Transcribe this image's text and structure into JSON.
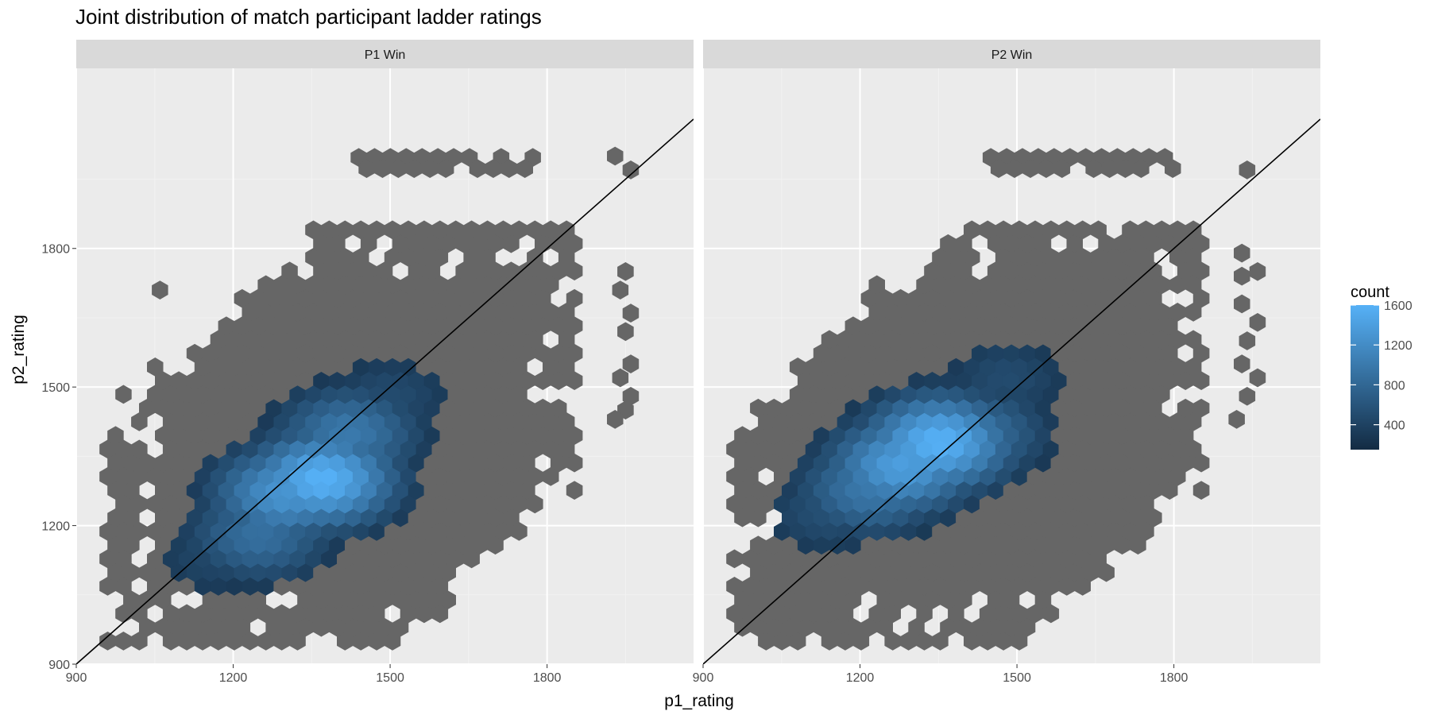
{
  "chart_data": {
    "type": "heatmap",
    "geom": "hexbin",
    "title": "Joint distribution of match participant ladder ratings",
    "xlabel": "p1_rating",
    "ylabel": "p2_rating",
    "xlim": [
      900,
      2080
    ],
    "ylim": [
      900,
      2190
    ],
    "x_ticks": [
      900,
      1200,
      1500,
      1800
    ],
    "y_ticks": [
      900,
      1200,
      1500,
      1800
    ],
    "x_tick_labels": [
      "900",
      "1200",
      "1500",
      "1800"
    ],
    "y_tick_labels": [
      "900",
      "1200",
      "1500",
      "1800"
    ],
    "reference_line": {
      "intercept": 0,
      "slope": 1,
      "label": "y = x"
    },
    "grid": true,
    "legend": {
      "title": "count",
      "position": "right",
      "ticks": [
        400,
        800,
        1200,
        1600
      ],
      "tick_labels": [
        "400",
        "800",
        "1200",
        "1600"
      ],
      "range": [
        150,
        1600
      ],
      "colors": {
        "low": "#132b43",
        "high": "#56b1f7"
      }
    },
    "colors": {
      "background_count_fill": "#666666",
      "panel_background": "#ebebeb",
      "strip_background": "#d9d9d9"
    },
    "facets": [
      {
        "label": "P1 Win",
        "background_region": {
          "x_min": 960,
          "x_max": 1860,
          "y_min": 950,
          "y_max": 1850
        },
        "outliers": [
          {
            "x": 1930,
            "y": 2000
          },
          {
            "x": 1960,
            "y": 1970
          },
          {
            "x": 1950,
            "y": 1750
          },
          {
            "x": 1940,
            "y": 1710
          },
          {
            "x": 1960,
            "y": 1660
          },
          {
            "x": 1950,
            "y": 1620
          },
          {
            "x": 1960,
            "y": 1550
          },
          {
            "x": 1940,
            "y": 1520
          },
          {
            "x": 1960,
            "y": 1480
          },
          {
            "x": 1950,
            "y": 1450
          },
          {
            "x": 1930,
            "y": 1430
          },
          {
            "x": 1060,
            "y": 1710
          }
        ],
        "top_row": {
          "x_min": 1440,
          "x_max": 1780,
          "y": 1985
        },
        "density": [
          {
            "x": 1370,
            "y": 1300,
            "count": 1600
          },
          {
            "x": 1300,
            "y": 1270,
            "count": 1300
          },
          {
            "x": 1420,
            "y": 1400,
            "count": 1000
          },
          {
            "x": 1250,
            "y": 1180,
            "count": 900
          },
          {
            "x": 1500,
            "y": 1480,
            "count": 500
          },
          {
            "x": 1160,
            "y": 1130,
            "count": 450
          },
          {
            "x": 1270,
            "y": 1030,
            "count": 300
          }
        ]
      },
      {
        "label": "P2 Win",
        "background_region": {
          "x_min": 960,
          "x_max": 1860,
          "y_min": 950,
          "y_max": 1850
        },
        "outliers": [
          {
            "x": 1940,
            "y": 1970
          },
          {
            "x": 1930,
            "y": 1790
          },
          {
            "x": 1930,
            "y": 1740
          },
          {
            "x": 1960,
            "y": 1750
          },
          {
            "x": 1930,
            "y": 1680
          },
          {
            "x": 1960,
            "y": 1640
          },
          {
            "x": 1940,
            "y": 1600
          },
          {
            "x": 1930,
            "y": 1550
          },
          {
            "x": 1960,
            "y": 1520
          },
          {
            "x": 1940,
            "y": 1480
          },
          {
            "x": 1920,
            "y": 1430
          }
        ],
        "top_row": {
          "x_min": 1450,
          "x_max": 1800,
          "y": 1985
        },
        "density": [
          {
            "x": 1350,
            "y": 1380,
            "count": 1600
          },
          {
            "x": 1280,
            "y": 1330,
            "count": 1400
          },
          {
            "x": 1220,
            "y": 1280,
            "count": 1000
          },
          {
            "x": 1420,
            "y": 1400,
            "count": 900
          },
          {
            "x": 1140,
            "y": 1230,
            "count": 550
          },
          {
            "x": 1480,
            "y": 1520,
            "count": 500
          },
          {
            "x": 1070,
            "y": 1240,
            "count": 300
          }
        ]
      }
    ]
  }
}
